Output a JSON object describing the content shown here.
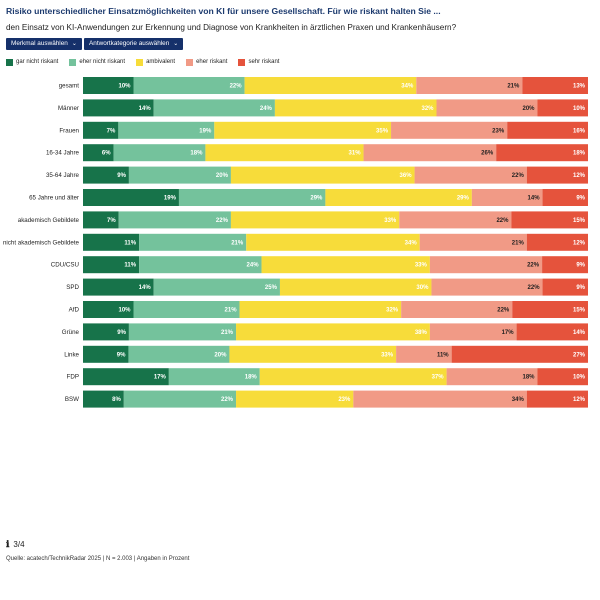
{
  "title": "Risiko unterschiedlicher Einsatzmöglichkeiten von KI für unsere Gesellschaft. Für wie riskant halten Sie ...",
  "question": "den Einsatz von KI-Anwendungen zur Erkennung und Diagnose von Krankheiten in ärztlichen Praxen und Krankenhäusern?",
  "dropdowns": {
    "merkmal": "Merkmal auswählen",
    "antwort": "Antwortkategorie auswählen"
  },
  "colors": {
    "gar_nicht_riskant": "#17734a",
    "eher_nicht_riskant": "#74c29c",
    "ambivalent": "#f7dc3a",
    "eher_riskant": "#f19a86",
    "sehr_riskant": "#e5533c"
  },
  "footer": {
    "page_indicator": "3/4",
    "source": "Quelle: acatech/TechnikRadar 2025 | N = 2.003 | Angaben in Prozent"
  },
  "chart_data": {
    "type": "bar",
    "orientation": "horizontal-stacked-100",
    "title": "Risiko unterschiedlicher Einsatzmöglichkeiten von KI für unsere Gesellschaft",
    "unit": "Prozent",
    "categories": [
      "gesamt",
      "Männer",
      "Frauen",
      "16-34 Jahre",
      "35-64 Jahre",
      "65 Jahre und älter",
      "akademisch Gebildete",
      "nicht akademisch Gebildete",
      "CDU/CSU",
      "SPD",
      "AfD",
      "Grüne",
      "Linke",
      "FDP",
      "BSW"
    ],
    "series": [
      {
        "name": "gar nicht riskant",
        "key": "gar_nicht_riskant",
        "values": [
          10,
          14,
          7,
          6,
          9,
          19,
          7,
          11,
          11,
          14,
          10,
          9,
          9,
          17,
          8
        ]
      },
      {
        "name": "eher nicht riskant",
        "key": "eher_nicht_riskant",
        "values": [
          22,
          24,
          19,
          18,
          20,
          29,
          22,
          21,
          24,
          25,
          21,
          21,
          20,
          18,
          22
        ]
      },
      {
        "name": "ambivalent",
        "key": "ambivalent",
        "values": [
          34,
          32,
          35,
          31,
          36,
          29,
          33,
          34,
          33,
          30,
          32,
          38,
          33,
          37,
          23
        ]
      },
      {
        "name": "eher riskant",
        "key": "eher_riskant",
        "values": [
          21,
          20,
          23,
          26,
          22,
          14,
          22,
          21,
          22,
          22,
          22,
          17,
          11,
          18,
          34
        ]
      },
      {
        "name": "sehr riskant",
        "key": "sehr_riskant",
        "values": [
          13,
          10,
          16,
          18,
          12,
          9,
          15,
          12,
          9,
          9,
          15,
          14,
          27,
          10,
          12
        ]
      }
    ],
    "legend_position": "top-left"
  }
}
